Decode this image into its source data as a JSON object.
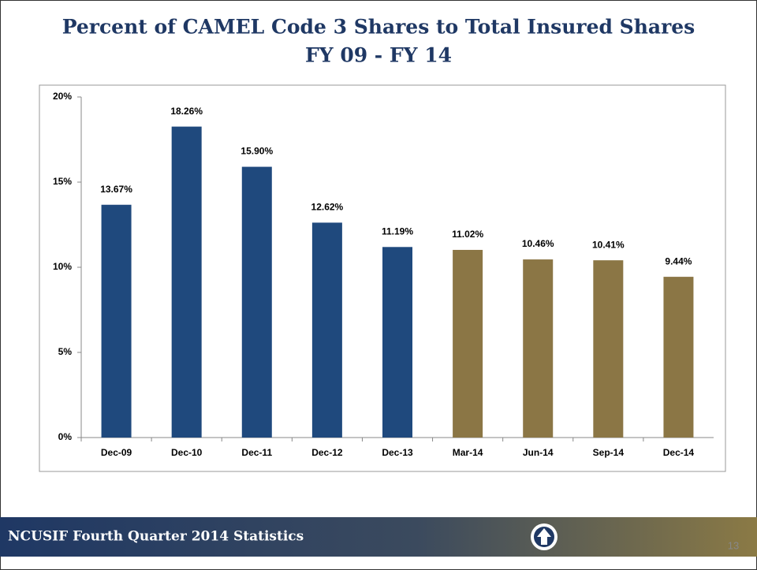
{
  "chart_data": {
    "type": "bar",
    "title": "Percent of CAMEL Code 3 Shares to Total Insured Shares",
    "subtitle": "FY 09 - FY 14",
    "categories": [
      "Dec-09",
      "Dec-10",
      "Dec-11",
      "Dec-12",
      "Dec-13",
      "Mar-14",
      "Jun-14",
      "Sep-14",
      "Dec-14"
    ],
    "values": [
      13.67,
      18.26,
      15.9,
      12.62,
      11.19,
      11.02,
      10.46,
      10.41,
      9.44
    ],
    "value_labels": [
      "13.67%",
      "18.26%",
      "15.90%",
      "12.62%",
      "11.19%",
      "11.02%",
      "10.46%",
      "10.41%",
      "9.44%"
    ],
    "colors": [
      "#1f497d",
      "#1f497d",
      "#1f497d",
      "#1f497d",
      "#1f497d",
      "#8b7645",
      "#8b7645",
      "#8b7645",
      "#8b7645"
    ],
    "ylim": [
      0,
      20
    ],
    "yticks": [
      {
        "value": 0,
        "label": "0%"
      },
      {
        "value": 5,
        "label": "5%"
      },
      {
        "value": 10,
        "label": "10%"
      },
      {
        "value": 15,
        "label": "15%"
      },
      {
        "value": 20,
        "label": "20%"
      }
    ],
    "grid": false
  },
  "footer": {
    "text": "NCUSIF Fourth Quarter 2014 Statistics",
    "page_number": "13"
  }
}
